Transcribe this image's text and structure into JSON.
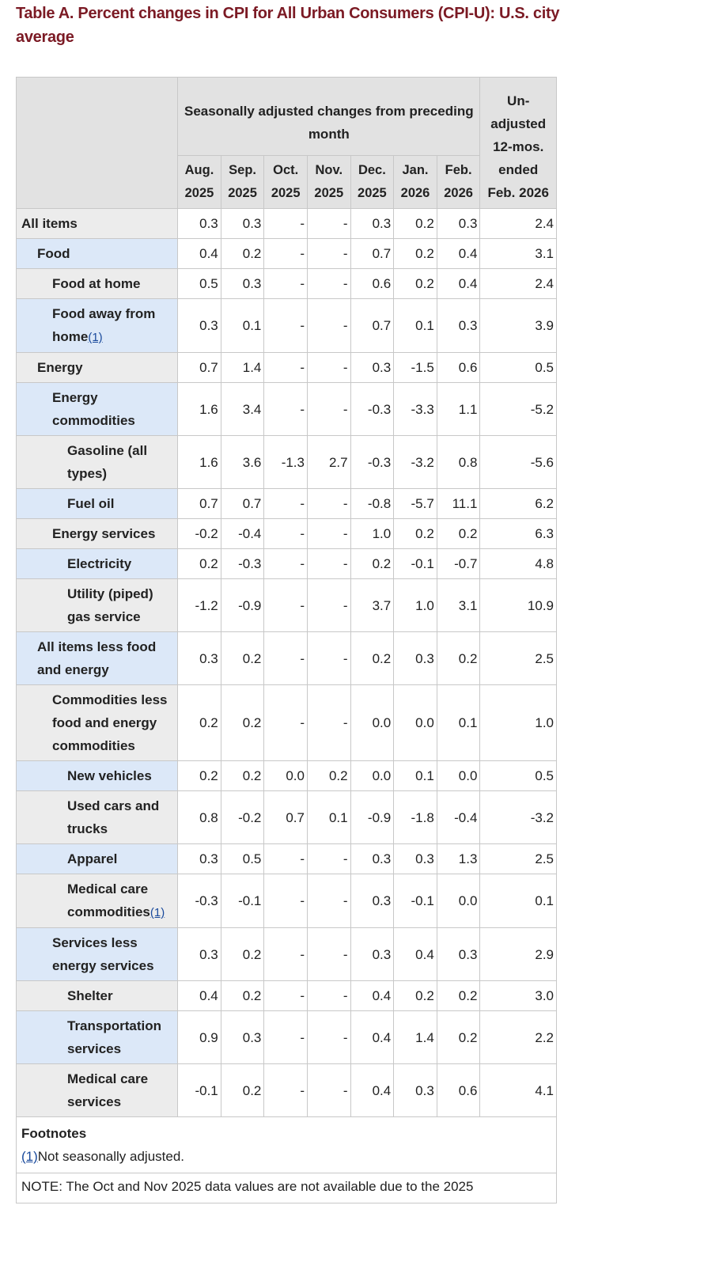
{
  "title": "Table A. Percent changes in CPI for All Urban Consumers (CPI-U): U.S. city average",
  "header": {
    "group_label": "Seasonally adjusted changes from preceding month",
    "unadjusted_label": "Un-adjusted 12-mos. ended Feb. 2026",
    "months": [
      "Aug. 2025",
      "Sep. 2025",
      "Oct. 2025",
      "Nov. 2025",
      "Dec. 2025",
      "Jan. 2026",
      "Feb. 2026"
    ]
  },
  "rows": [
    {
      "label": "All items",
      "level": 0,
      "values": [
        "0.3",
        "0.3",
        "-",
        "-",
        "0.3",
        "0.2",
        "0.3"
      ],
      "unadjusted": "2.4"
    },
    {
      "label": "Food",
      "level": 1,
      "values": [
        "0.4",
        "0.2",
        "-",
        "-",
        "0.7",
        "0.2",
        "0.4"
      ],
      "unadjusted": "3.1"
    },
    {
      "label": "Food at home",
      "level": 2,
      "values": [
        "0.5",
        "0.3",
        "-",
        "-",
        "0.6",
        "0.2",
        "0.4"
      ],
      "unadjusted": "2.4"
    },
    {
      "label": "Food away from home",
      "footnote": "(1)",
      "level": 2,
      "values": [
        "0.3",
        "0.1",
        "-",
        "-",
        "0.7",
        "0.1",
        "0.3"
      ],
      "unadjusted": "3.9"
    },
    {
      "label": "Energy",
      "level": 1,
      "values": [
        "0.7",
        "1.4",
        "-",
        "-",
        "0.3",
        "-1.5",
        "0.6"
      ],
      "unadjusted": "0.5"
    },
    {
      "label": "Energy commodities",
      "level": 2,
      "values": [
        "1.6",
        "3.4",
        "-",
        "-",
        "-0.3",
        "-3.3",
        "1.1"
      ],
      "unadjusted": "-5.2"
    },
    {
      "label": "Gasoline (all types)",
      "level": 3,
      "values": [
        "1.6",
        "3.6",
        "-1.3",
        "2.7",
        "-0.3",
        "-3.2",
        "0.8"
      ],
      "unadjusted": "-5.6"
    },
    {
      "label": "Fuel oil",
      "level": 3,
      "values": [
        "0.7",
        "0.7",
        "-",
        "-",
        "-0.8",
        "-5.7",
        "11.1"
      ],
      "unadjusted": "6.2"
    },
    {
      "label": "Energy services",
      "level": 2,
      "values": [
        "-0.2",
        "-0.4",
        "-",
        "-",
        "1.0",
        "0.2",
        "0.2"
      ],
      "unadjusted": "6.3"
    },
    {
      "label": "Electricity",
      "level": 3,
      "values": [
        "0.2",
        "-0.3",
        "-",
        "-",
        "0.2",
        "-0.1",
        "-0.7"
      ],
      "unadjusted": "4.8"
    },
    {
      "label": "Utility (piped) gas service",
      "level": 3,
      "values": [
        "-1.2",
        "-0.9",
        "-",
        "-",
        "3.7",
        "1.0",
        "3.1"
      ],
      "unadjusted": "10.9"
    },
    {
      "label": "All items less food and energy",
      "level": 1,
      "values": [
        "0.3",
        "0.2",
        "-",
        "-",
        "0.2",
        "0.3",
        "0.2"
      ],
      "unadjusted": "2.5"
    },
    {
      "label": "Commodities less food and energy commodities",
      "level": 2,
      "values": [
        "0.2",
        "0.2",
        "-",
        "-",
        "0.0",
        "0.0",
        "0.1"
      ],
      "unadjusted": "1.0"
    },
    {
      "label": "New vehicles",
      "level": 3,
      "values": [
        "0.2",
        "0.2",
        "0.0",
        "0.2",
        "0.0",
        "0.1",
        "0.0"
      ],
      "unadjusted": "0.5"
    },
    {
      "label": "Used cars and trucks",
      "level": 3,
      "values": [
        "0.8",
        "-0.2",
        "0.7",
        "0.1",
        "-0.9",
        "-1.8",
        "-0.4"
      ],
      "unadjusted": "-3.2"
    },
    {
      "label": "Apparel",
      "level": 3,
      "values": [
        "0.3",
        "0.5",
        "-",
        "-",
        "0.3",
        "0.3",
        "1.3"
      ],
      "unadjusted": "2.5"
    },
    {
      "label": "Medical care commodities",
      "footnote": "(1)",
      "level": 3,
      "values": [
        "-0.3",
        "-0.1",
        "-",
        "-",
        "0.3",
        "-0.1",
        "0.0"
      ],
      "unadjusted": "0.1"
    },
    {
      "label": "Services less energy services",
      "level": 2,
      "values": [
        "0.3",
        "0.2",
        "-",
        "-",
        "0.3",
        "0.4",
        "0.3"
      ],
      "unadjusted": "2.9"
    },
    {
      "label": "Shelter",
      "level": 3,
      "values": [
        "0.4",
        "0.2",
        "-",
        "-",
        "0.4",
        "0.2",
        "0.2"
      ],
      "unadjusted": "3.0"
    },
    {
      "label": "Transportation services",
      "level": 3,
      "values": [
        "0.9",
        "0.3",
        "-",
        "-",
        "0.4",
        "1.4",
        "0.2"
      ],
      "unadjusted": "2.2"
    },
    {
      "label": "Medical care services",
      "level": 3,
      "values": [
        "-0.1",
        "0.2",
        "-",
        "-",
        "0.4",
        "0.3",
        "0.6"
      ],
      "unadjusted": "4.1"
    }
  ],
  "footnotes": {
    "heading": "Footnotes",
    "items": [
      {
        "marker": "(1)",
        "text": "Not seasonally adjusted."
      }
    ],
    "note": "NOTE: The Oct and Nov 2025 data values are not available due to the 2025"
  },
  "colors": {
    "title": "#7b1a24",
    "header_bg": "#e2e2e2",
    "row_gray": "#ececec",
    "row_blue": "#dce8f8",
    "link": "#1a4a9c"
  }
}
